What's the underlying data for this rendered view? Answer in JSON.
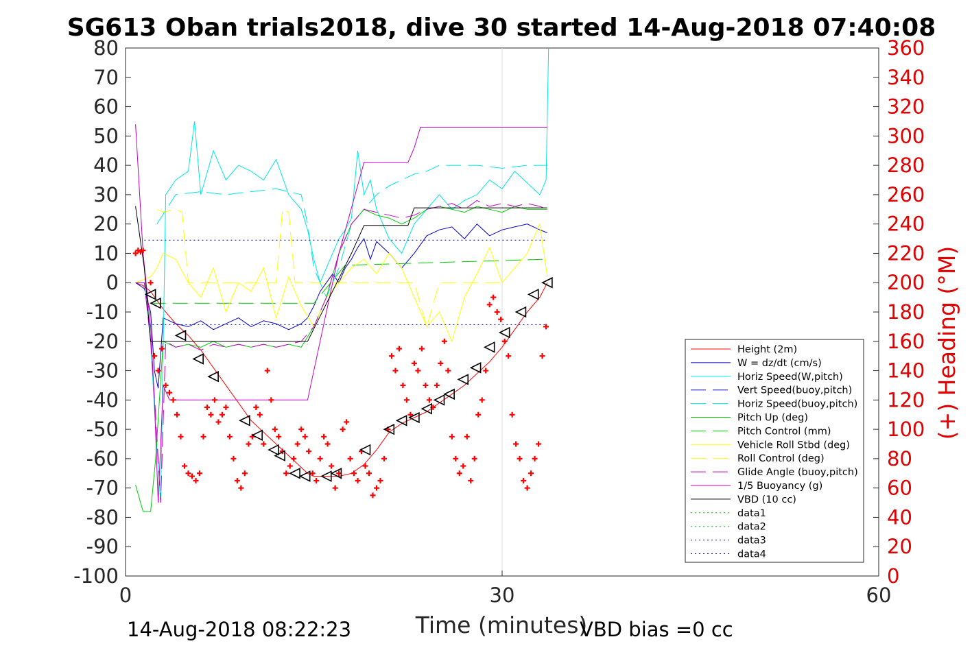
{
  "chart_data": {
    "type": "line",
    "title": "SG613 Oban trials2018, dive 30 started 14-Aug-2018 07:40:08",
    "xlabel": "Time (minutes)",
    "ylabel_right": "(+) Heading (°M)",
    "xlim": [
      0,
      60
    ],
    "ylim_left": [
      -100,
      80
    ],
    "ylim_right": [
      0,
      360
    ],
    "xticks": [
      "0",
      "30",
      "60"
    ],
    "yticks_left": [
      "80",
      "70",
      "60",
      "50",
      "40",
      "30",
      "20",
      "10",
      "0",
      "-10",
      "-20",
      "-30",
      "-40",
      "-50",
      "-60",
      "-70",
      "-80",
      "-90",
      "-100"
    ],
    "yticks_right": [
      "360",
      "340",
      "320",
      "300",
      "280",
      "260",
      "240",
      "220",
      "200",
      "180",
      "160",
      "140",
      "120",
      "100",
      "80",
      "60",
      "40",
      "20",
      "0"
    ],
    "grid": "x-only at 30",
    "legend_position": "lower-right",
    "footer_left": "14-Aug-2018 08:22:23",
    "footer_right": "VBD bias =0 cc",
    "colors": {
      "red": "#ff0000",
      "blue": "#0000cc",
      "cyan": "#00e5e5",
      "green": "#00cc00",
      "yellow": "#ffff00",
      "magenta": "#c000c0",
      "black": "#000000"
    },
    "series": [
      {
        "name": "Height (2m)",
        "color": "#ff0000",
        "dash": "solid",
        "x": [
          0.8,
          1.4,
          2.0,
          2.5,
          3.0,
          4.0,
          5.0,
          6.0,
          7.0,
          8.0,
          9.0,
          10.0,
          11.0,
          12.0,
          13.0,
          14.0,
          14.5,
          15.0,
          16.0,
          17.0,
          18.0,
          19.0,
          20.0,
          21.0,
          22.0,
          23.0,
          24.0,
          25.0,
          26.0,
          27.0,
          28.0,
          29.0,
          30.0,
          31.0,
          32.0,
          33.0,
          33.6
        ],
        "y": [
          0,
          -1,
          -3,
          -6,
          -9,
          -14,
          -18,
          -23,
          -29,
          -35,
          -41,
          -47,
          -51,
          -55,
          -59,
          -63,
          -65,
          -66,
          -66,
          -66,
          -65,
          -62,
          -57,
          -51,
          -48,
          -46,
          -44,
          -41,
          -38,
          -35,
          -31,
          -27,
          -22,
          -16,
          -10,
          -5,
          0
        ]
      },
      {
        "name": "W = dz/dt (cm/s)",
        "color": "#0000cc",
        "dash": "solid",
        "x": [
          0.8,
          1.5,
          2.0,
          2.3,
          2.6,
          3.0,
          4,
          5,
          6,
          7,
          8,
          9,
          10,
          11,
          12,
          13,
          14,
          14.5,
          15,
          15.5,
          16,
          16.5,
          17,
          17.5,
          18,
          18.5,
          19,
          19.5,
          20,
          21,
          22,
          23,
          24,
          25,
          26,
          27,
          28,
          29,
          30,
          31,
          32,
          33,
          33.6
        ],
        "y": [
          0,
          -2,
          -10,
          -30,
          -36,
          -12,
          -14,
          -15,
          -13,
          -16,
          -14,
          -12,
          -15,
          -13,
          -14,
          -16,
          -14,
          -12,
          -8,
          -3,
          0,
          3,
          0,
          5,
          8,
          12,
          15,
          8,
          14,
          10,
          5,
          10,
          16,
          18,
          19,
          15,
          20,
          16,
          18,
          19,
          20,
          18,
          17
        ]
      },
      {
        "name": "Horiz Speed(W,pitch)",
        "color": "#00e5e5",
        "dash": "solid",
        "x": [
          0.8,
          1.5,
          2.0,
          2.4,
          2.8,
          3.2,
          4,
          5,
          5.5,
          6,
          7,
          8,
          9,
          10,
          11,
          12,
          13,
          14,
          14.5,
          15,
          15.5,
          16,
          16.5,
          17,
          17.5,
          18,
          18.5,
          19,
          19.5,
          20,
          21,
          22,
          23,
          24,
          25,
          26,
          27,
          28,
          29,
          30,
          31,
          32,
          33,
          33.5,
          33.7
        ],
        "y": [
          0,
          0,
          -20,
          -50,
          -75,
          30,
          35,
          38,
          55,
          30,
          45,
          35,
          40,
          38,
          35,
          42,
          30,
          25,
          18,
          8,
          0,
          5,
          10,
          15,
          18,
          22,
          45,
          30,
          35,
          25,
          15,
          10,
          20,
          25,
          30,
          25,
          28,
          30,
          35,
          32,
          38,
          34,
          30,
          35,
          80
        ]
      },
      {
        "name": "Vert Speed(buoy,pitch)",
        "color": "#0000cc",
        "dash": "dashed",
        "x": [],
        "y": []
      },
      {
        "name": "Horiz Speed(buoy,pitch)",
        "color": "#00e5e5",
        "dash": "dashed",
        "x": [
          2.5,
          4,
          6,
          8,
          10,
          12,
          14,
          14.5,
          15,
          16,
          17,
          18,
          19,
          20,
          21,
          22,
          23,
          24,
          25,
          26,
          28,
          30,
          32,
          33.6
        ],
        "y": [
          20,
          30,
          31,
          30,
          31,
          32,
          30,
          20,
          5,
          -5,
          5,
          20,
          25,
          30,
          33,
          35,
          37,
          38,
          40,
          40,
          40,
          39,
          40,
          40
        ]
      },
      {
        "name": "Pitch Up (deg)",
        "color": "#00cc00",
        "dash": "solid",
        "x": [
          0.8,
          1.4,
          2.0,
          2.4,
          3.0,
          4,
          5,
          6,
          7,
          8,
          9,
          10,
          11,
          12,
          13,
          14,
          15,
          16,
          17,
          18,
          19,
          20,
          21,
          22,
          23,
          24,
          25,
          26,
          27,
          28,
          29,
          30,
          31,
          32,
          33,
          33.6
        ],
        "y": [
          -69,
          -78,
          -78,
          -60,
          -20,
          -22,
          -21,
          -22,
          -20,
          -22,
          -21,
          -22,
          -21,
          -22,
          -21,
          -22,
          -15,
          -5,
          10,
          20,
          25,
          23,
          22,
          20,
          22,
          25,
          26,
          25,
          24,
          26,
          25,
          24,
          26,
          25,
          25,
          25
        ]
      },
      {
        "name": "Pitch Control (mm)",
        "color": "#00cc00",
        "dash": "dashed",
        "x": [
          2.0,
          14.5,
          15.0,
          17.5,
          18.0,
          33.6
        ],
        "y": [
          -7,
          -7,
          -7,
          6,
          6,
          8
        ]
      },
      {
        "name": "Vehicle Roll Stbd (deg)",
        "color": "#ffff00",
        "dash": "solid",
        "x": [
          0.8,
          2.0,
          2.5,
          3.0,
          4,
          5,
          6,
          7,
          8,
          9,
          10,
          11,
          12,
          13,
          14,
          15,
          16,
          17,
          18,
          19,
          20,
          21,
          22,
          23,
          24,
          25,
          26,
          27,
          28,
          29,
          30,
          31,
          32,
          33,
          33.6
        ],
        "y": [
          0,
          2,
          5,
          10,
          8,
          0,
          -5,
          5,
          -10,
          0,
          -3,
          5,
          -12,
          2,
          -8,
          -15,
          -5,
          0,
          5,
          8,
          3,
          10,
          5,
          -5,
          -15,
          -10,
          -20,
          -5,
          3,
          12,
          0,
          5,
          10,
          20,
          2
        ]
      },
      {
        "name": "Roll Control (deg)",
        "color": "#ffff00",
        "dash": "dashed",
        "x": [
          2.5,
          3.0,
          4.0,
          4.5,
          5.0,
          12.0,
          12.5,
          13.0,
          13.5,
          14,
          20,
          21,
          22,
          23,
          24,
          25,
          26,
          27,
          28,
          29,
          30
        ],
        "y": [
          25,
          24,
          25,
          24,
          0,
          0,
          25,
          24,
          0,
          0,
          0,
          0,
          0,
          0,
          -15,
          0,
          0,
          0,
          0,
          0,
          0
        ]
      },
      {
        "name": "Glide Angle (buoy,pitch)",
        "color": "#c000c0",
        "dash": "dashed",
        "x": [
          0.8,
          1.5,
          2.0,
          2.4,
          2.8,
          3.2,
          4,
          5,
          6,
          7,
          8,
          9,
          10,
          11,
          12,
          13,
          14,
          15,
          16,
          17,
          18,
          19,
          20,
          21,
          22,
          23,
          24,
          25,
          26,
          27,
          28,
          29,
          30,
          31,
          32,
          33,
          33.6
        ],
        "y": [
          0,
          0,
          -20,
          -45,
          -75,
          -20,
          -22,
          -21,
          -23,
          -21,
          -22,
          -21,
          -22,
          -21,
          -22,
          -21,
          -20,
          -15,
          -5,
          10,
          20,
          25,
          24,
          23,
          22,
          23,
          25,
          26,
          27,
          25,
          28,
          26,
          27,
          26,
          27,
          26,
          25
        ]
      },
      {
        "name": "1/5 Buoyancy (g)",
        "color": "#c000c0",
        "dash": "solid",
        "x": [
          0.8,
          1.4,
          2.0,
          2.3,
          2.6,
          3.0,
          3.5,
          14.0,
          14.5,
          17.0,
          19.0,
          22.5,
          23.0,
          23.5,
          24.0,
          33.6
        ],
        "y": [
          54,
          10,
          -15,
          -40,
          -75,
          -35,
          -40,
          -40,
          -40,
          10,
          41,
          41,
          46,
          53,
          53,
          53
        ]
      },
      {
        "name": "VBD (10 cc)",
        "color": "#000000",
        "dash": "solid",
        "x": [
          0.8,
          1.5,
          1.8,
          2.0,
          14.0,
          14.5,
          18.0,
          19.0,
          22.5,
          23.0,
          33.6
        ],
        "y": [
          26,
          5,
          -10,
          -20,
          -20,
          -20,
          10,
          19.5,
          19.5,
          25.5,
          25.5
        ]
      },
      {
        "name": "data1",
        "color": "#00cc00",
        "dash": "dotted",
        "x": [],
        "y": []
      },
      {
        "name": "data2",
        "color": "#00cc00",
        "dash": "dotted",
        "x": [],
        "y": []
      },
      {
        "name": "data3",
        "color": "#0000cc",
        "dash": "dotted",
        "x": [
          1.5,
          33.6
        ],
        "y": [
          14.5,
          14.5
        ]
      },
      {
        "name": "data4",
        "color": "#0000cc",
        "dash": "dotted",
        "x": [
          1.5,
          33.6
        ],
        "y": [
          -14.3,
          -14.3
        ]
      }
    ],
    "heading_series": {
      "name": "Heading",
      "color": "#ff0000",
      "axis": "right",
      "x": [
        0.8,
        1.0,
        1.2,
        1.4,
        2.0,
        2.3,
        2.6,
        2.9,
        3.2,
        3.5,
        3.8,
        4.1,
        4.4,
        4.7,
        5.0,
        5.3,
        5.6,
        5.9,
        6.2,
        6.5,
        6.8,
        7.1,
        7.4,
        7.7,
        8.0,
        8.3,
        8.6,
        8.9,
        9.2,
        9.5,
        9.8,
        10.1,
        10.4,
        10.7,
        11.0,
        11.3,
        11.6,
        11.9,
        12.2,
        12.5,
        12.8,
        13.1,
        13.4,
        13.7,
        14.0,
        14.3,
        14.6,
        14.9,
        15.2,
        15.5,
        15.8,
        16.1,
        16.4,
        16.7,
        17.0,
        17.3,
        17.6,
        17.9,
        18.2,
        18.5,
        18.8,
        19.1,
        19.4,
        19.7,
        20.0,
        20.3,
        20.6,
        20.9,
        21.2,
        21.5,
        21.8,
        22.1,
        22.4,
        22.7,
        23.0,
        23.3,
        23.6,
        23.9,
        24.2,
        24.5,
        24.8,
        25.1,
        25.4,
        25.7,
        26.0,
        26.3,
        26.6,
        26.9,
        27.2,
        27.5,
        27.8,
        28.1,
        28.4,
        28.7,
        29.0,
        29.3,
        29.6,
        29.9,
        30.2,
        30.5,
        30.8,
        31.1,
        31.4,
        31.7,
        32.0,
        32.3,
        32.6,
        32.9,
        33.2,
        33.5
      ],
      "y": [
        220,
        222,
        221,
        222,
        200,
        150,
        140,
        155,
        130,
        125,
        120,
        110,
        95,
        75,
        70,
        68,
        65,
        70,
        95,
        115,
        110,
        120,
        105,
        110,
        115,
        95,
        80,
        65,
        60,
        70,
        90,
        95,
        115,
        110,
        90,
        140,
        120,
        100,
        95,
        85,
        70,
        75,
        80,
        90,
        100,
        95,
        85,
        70,
        65,
        80,
        95,
        90,
        75,
        60,
        70,
        100,
        105,
        80,
        70,
        65,
        85,
        75,
        70,
        55,
        60,
        65,
        80,
        100,
        150,
        140,
        155,
        130,
        120,
        110,
        145,
        140,
        155,
        130,
        120,
        115,
        130,
        145,
        160,
        140,
        95,
        80,
        70,
        75,
        95,
        65,
        80,
        110,
        120,
        140,
        185,
        190,
        180,
        175,
        160,
        150,
        110,
        90,
        80,
        65,
        60,
        70,
        80,
        90,
        150,
        170
      ]
    },
    "markers": {
      "triangle_marks_on": "Height (2m)",
      "x": [
        2.0,
        2.4,
        4.4,
        5.8,
        7.0,
        9.5,
        10.5,
        11.8,
        12.3,
        13.5,
        14.3,
        16.0,
        16.8,
        19.1,
        21.0,
        22.0,
        23.0,
        24.0,
        25.0,
        25.8,
        26.9,
        27.9,
        29.0,
        30.2,
        31.5,
        32.5,
        33.6
      ],
      "y": [
        -4,
        -7,
        -18,
        -26,
        -32,
        -47,
        -52,
        -57,
        -59,
        -65,
        -66,
        -66,
        -65,
        -57,
        -50,
        -47,
        -46,
        -43,
        -40,
        -38,
        -33,
        -29,
        -22,
        -17,
        -10,
        -4,
        0
      ]
    }
  }
}
